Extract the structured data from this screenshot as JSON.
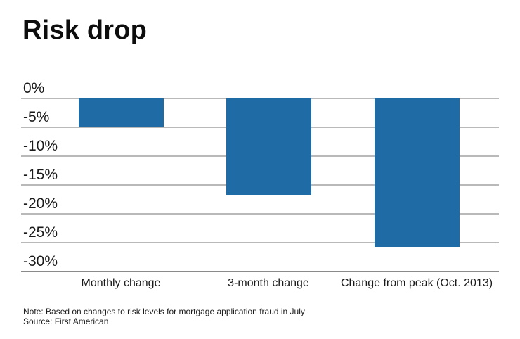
{
  "header": {
    "title": "Risk drop"
  },
  "footer": {
    "note": "Note: Based on changes to risk levels for mortgage application fraud in July",
    "source": "Source: First American"
  },
  "chart_data": {
    "type": "bar",
    "title": "Risk drop",
    "categories": [
      "Monthly change",
      "3-month change",
      "Change from peak (Oct. 2013)"
    ],
    "values": [
      -5,
      -16.8,
      -25.8
    ],
    "unit": "%",
    "xlabel": "",
    "ylabel": "",
    "ylim": [
      0,
      -30
    ],
    "yticks": {
      "values": [
        0,
        -5,
        -10,
        -15,
        -20,
        -25,
        -30
      ],
      "labels": [
        "0%",
        "-5%",
        "-10%",
        "-15%",
        "-20%",
        "-25%",
        "-30%"
      ]
    },
    "grid": "horizontal",
    "legend": "none",
    "colors": {
      "bar": "#1E6BA6",
      "gridline": "#B9B9B9",
      "axis_line": "#8A8A8A",
      "text": "#1A1A1A"
    }
  }
}
